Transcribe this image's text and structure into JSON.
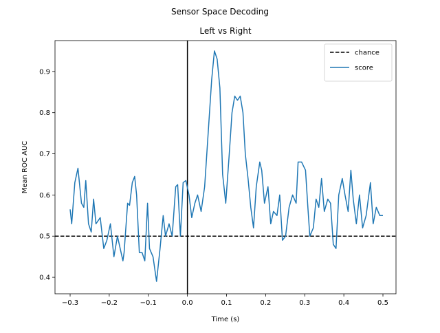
{
  "chart_data": {
    "type": "line",
    "suptitle": "Sensor Space Decoding",
    "title": "Left vs Right",
    "xlabel": "Time (s)",
    "ylabel": "Mean ROC AUC",
    "xlim": [
      -0.3387,
      0.5334
    ],
    "ylim": [
      0.36,
      0.975
    ],
    "xticks": [
      {
        "value": -0.3,
        "label": "−0.3"
      },
      {
        "value": -0.2,
        "label": "−0.2"
      },
      {
        "value": -0.1,
        "label": "−0.1"
      },
      {
        "value": 0.0,
        "label": "0.0"
      },
      0.1,
      0.2,
      0.3,
      0.4,
      0.5
    ],
    "yticks": [
      0.4,
      0.5,
      0.6,
      0.7,
      0.8,
      0.9
    ],
    "legend_loc": "upper right",
    "vlines": [
      0.0
    ],
    "hlines": [
      {
        "name": "chance",
        "value": 0.5,
        "color": "#000000",
        "dash": "dashed"
      }
    ],
    "x": [
      -0.3,
      -0.296,
      -0.288,
      -0.28,
      -0.271,
      -0.265,
      -0.26,
      -0.253,
      -0.246,
      -0.24,
      -0.234,
      -0.223,
      -0.214,
      -0.206,
      -0.197,
      -0.188,
      -0.179,
      -0.172,
      -0.165,
      -0.162,
      -0.153,
      -0.148,
      -0.141,
      -0.135,
      -0.13,
      -0.123,
      -0.116,
      -0.109,
      -0.102,
      -0.097,
      -0.088,
      -0.079,
      -0.07,
      -0.062,
      -0.056,
      -0.047,
      -0.039,
      -0.03,
      -0.025,
      -0.018,
      -0.011,
      -0.004,
      0.004,
      0.011,
      0.019,
      0.026,
      0.035,
      0.044,
      0.053,
      0.062,
      0.069,
      0.076,
      0.083,
      0.09,
      0.098,
      0.107,
      0.114,
      0.121,
      0.128,
      0.135,
      0.142,
      0.148,
      0.155,
      0.162,
      0.169,
      0.176,
      0.185,
      0.19,
      0.197,
      0.206,
      0.213,
      0.22,
      0.229,
      0.236,
      0.243,
      0.251,
      0.26,
      0.269,
      0.278,
      0.283,
      0.292,
      0.302,
      0.308,
      0.313,
      0.322,
      0.329,
      0.336,
      0.343,
      0.35,
      0.359,
      0.366,
      0.373,
      0.38,
      0.387,
      0.396,
      0.403,
      0.411,
      0.418,
      0.424,
      0.432,
      0.44,
      0.448,
      0.457,
      0.468,
      0.475,
      0.483,
      0.492,
      0.5
    ],
    "series": [
      {
        "name": "score",
        "color": "#1f77b4",
        "values": [
          0.565,
          0.53,
          0.63,
          0.665,
          0.58,
          0.57,
          0.635,
          0.53,
          0.51,
          0.59,
          0.53,
          0.545,
          0.47,
          0.49,
          0.53,
          0.45,
          0.5,
          0.47,
          0.44,
          0.46,
          0.58,
          0.575,
          0.63,
          0.645,
          0.6,
          0.46,
          0.46,
          0.44,
          0.58,
          0.47,
          0.45,
          0.39,
          0.47,
          0.55,
          0.5,
          0.53,
          0.5,
          0.62,
          0.625,
          0.5,
          0.63,
          0.635,
          0.6,
          0.545,
          0.58,
          0.6,
          0.56,
          0.62,
          0.75,
          0.88,
          0.95,
          0.93,
          0.86,
          0.65,
          0.58,
          0.7,
          0.8,
          0.84,
          0.83,
          0.84,
          0.8,
          0.7,
          0.64,
          0.57,
          0.52,
          0.62,
          0.68,
          0.66,
          0.58,
          0.62,
          0.53,
          0.56,
          0.55,
          0.6,
          0.49,
          0.5,
          0.57,
          0.6,
          0.58,
          0.68,
          0.68,
          0.66,
          0.57,
          0.5,
          0.52,
          0.59,
          0.57,
          0.64,
          0.56,
          0.59,
          0.58,
          0.48,
          0.47,
          0.6,
          0.64,
          0.6,
          0.56,
          0.66,
          0.59,
          0.53,
          0.6,
          0.52,
          0.55,
          0.63,
          0.53,
          0.57,
          0.55,
          0.55
        ]
      }
    ]
  }
}
